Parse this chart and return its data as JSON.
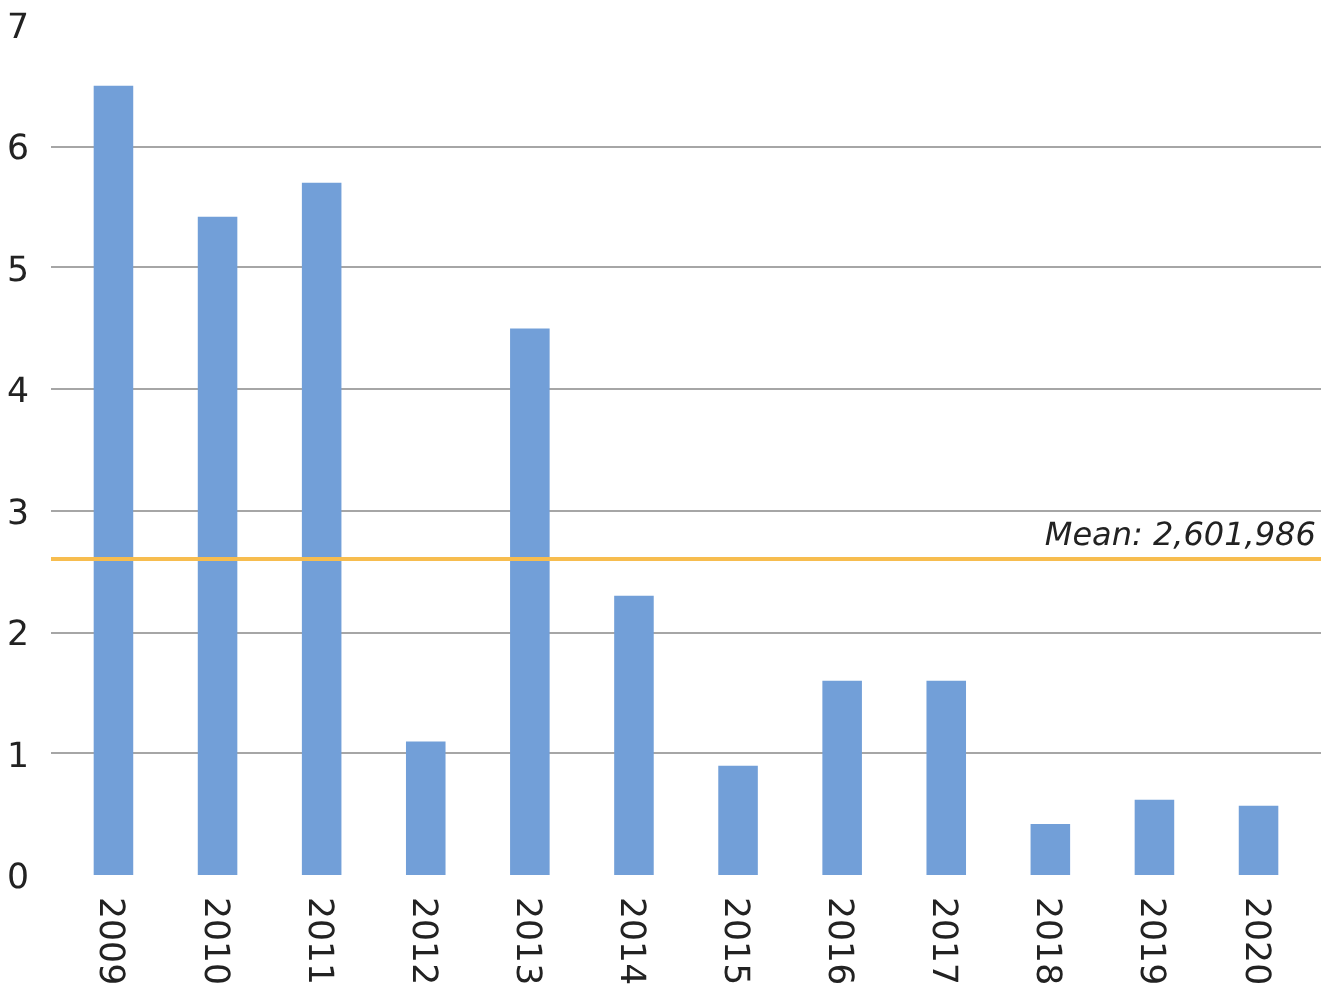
{
  "chart_data": {
    "type": "bar",
    "categories": [
      "2009",
      "2010",
      "2011",
      "2012",
      "2013",
      "2014",
      "2015",
      "2016",
      "2017",
      "2018",
      "2019",
      "2020"
    ],
    "values": [
      6.5,
      5.42,
      5.7,
      1.1,
      4.5,
      2.3,
      0.9,
      1.6,
      1.6,
      0.42,
      0.62,
      0.57
    ],
    "color": "#729fd8",
    "ylim": [
      0,
      7
    ],
    "yticks": [
      0,
      1,
      2,
      3,
      4,
      5,
      6,
      7
    ],
    "grid": "y",
    "ref_lines": [
      {
        "axis": "y",
        "value": 2.601986,
        "label": "Mean: 2,601,986",
        "color": "#f7bd4f"
      }
    ]
  }
}
